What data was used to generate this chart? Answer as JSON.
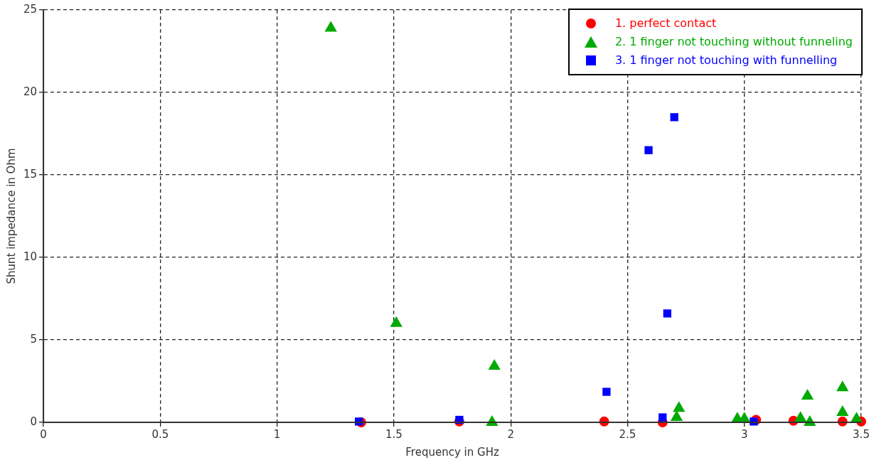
{
  "chart_data": {
    "type": "scatter",
    "xlabel": "Frequency in GHz",
    "ylabel": "Shunt impedance in Ohm",
    "xlim": [
      0,
      3.5
    ],
    "xticks": [
      0,
      0.5,
      1,
      1.5,
      2,
      2.5,
      3,
      3.5
    ],
    "ylim": [
      0,
      25
    ],
    "yticks": [
      0,
      5,
      10,
      15,
      20,
      25
    ],
    "grid": true,
    "legend": "top right",
    "series": [
      {
        "name": "1. perfect contact",
        "color": "#ff0000",
        "marker": "circle",
        "x": [
          1.36,
          1.78,
          2.4,
          2.65,
          3.05,
          3.21,
          3.42,
          3.5
        ],
        "values": [
          0,
          0.05,
          0.05,
          0,
          0.15,
          0.1,
          0.05,
          0.05
        ]
      },
      {
        "name": "2. 1 finger not touching without funneling",
        "color": "#00aa00",
        "marker": "triangle",
        "x": [
          1.23,
          1.51,
          1.93,
          1.92,
          2.72,
          2.71,
          2.97,
          3.0,
          3.27,
          3.24,
          3.28,
          3.42,
          3.42,
          3.48
        ],
        "values": [
          23.9,
          6.0,
          3.4,
          0,
          0.85,
          0.3,
          0.2,
          0.2,
          1.6,
          0.25,
          0,
          2.1,
          0.6,
          0.2
        ]
      },
      {
        "name": "3. 1 finger not touching with funnelling",
        "color": "#0000ff",
        "marker": "square",
        "x": [
          1.35,
          1.78,
          2.41,
          2.59,
          2.7,
          2.67,
          2.65,
          3.04
        ],
        "values": [
          0.05,
          0.15,
          1.85,
          16.5,
          18.5,
          6.6,
          0.3,
          0.05
        ]
      }
    ]
  }
}
